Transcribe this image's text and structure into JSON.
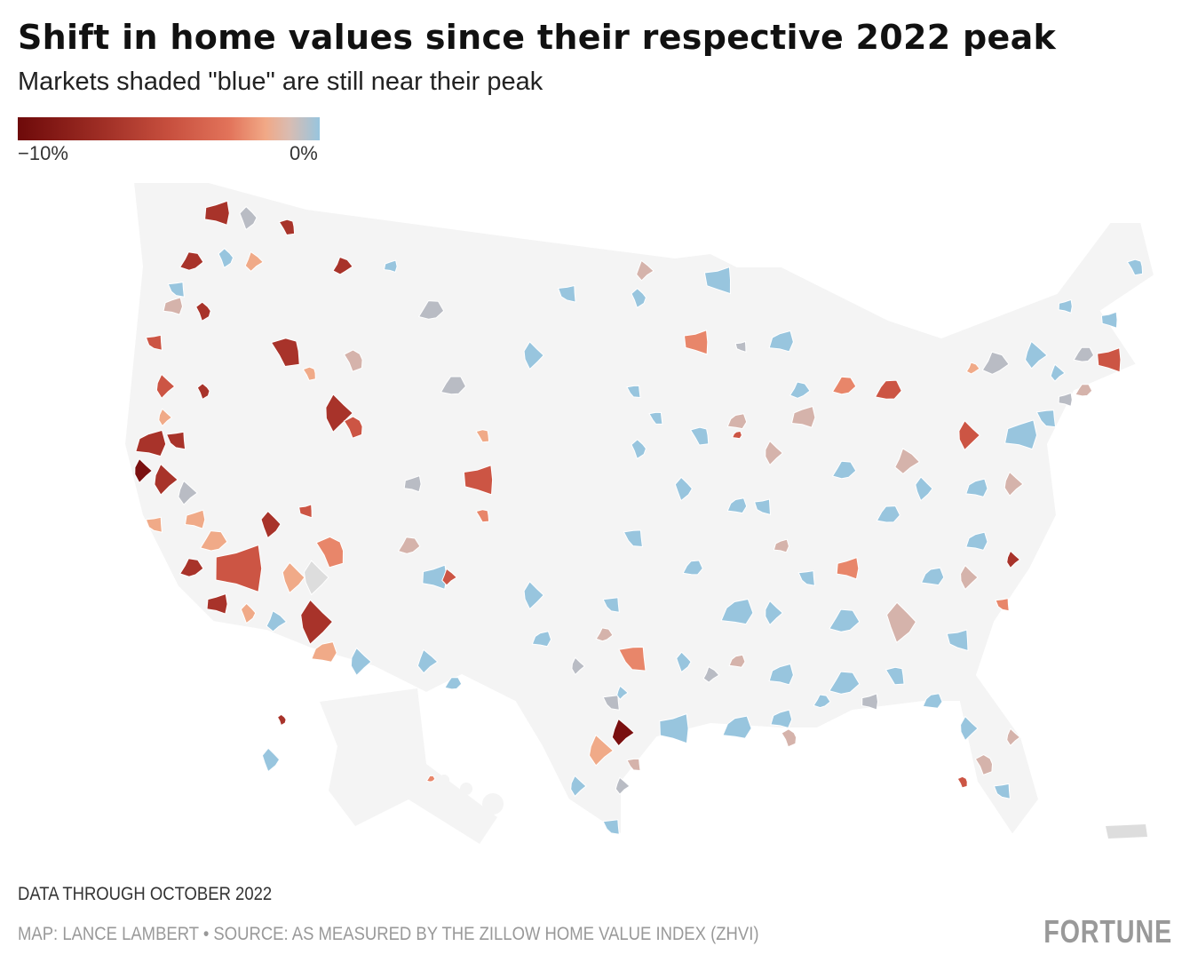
{
  "header": {
    "title": "Shift in home values since their respective 2022 peak",
    "subtitle": "Markets shaded \"blue\" are still near their peak"
  },
  "legend": {
    "min_label": "−10%",
    "max_label": "0%",
    "min_value": -10,
    "max_value": 0,
    "colors": [
      "#6e0a0a",
      "#c74f3e",
      "#f1a886",
      "#98c5de"
    ]
  },
  "map": {
    "background": "#f5f5f5",
    "no_data_color": "#dddddd",
    "near_peak_color": "#98c5de"
  },
  "footer": {
    "note": "DATA THROUGH OCTOBER 2022",
    "credit": "MAP: LANCE LAMBERT • SOURCE: AS MEASURED BY THE ZILLOW HOME VALUE INDEX (ZHVI)",
    "logo": "FORTUNE"
  }
}
